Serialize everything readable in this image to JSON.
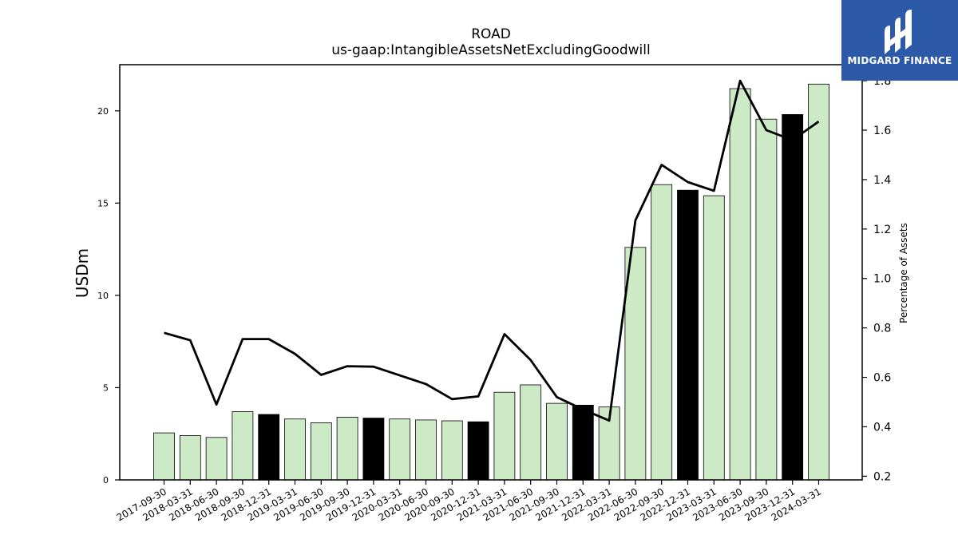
{
  "chart_data": {
    "type": "bar",
    "title": "ROAD",
    "subtitle": "us-gaap:IntangibleAssetsNetExcludingGoodwill",
    "ylabel": "USDm",
    "y2label": "Percentage of Assets",
    "ylim": [
      0,
      22.5
    ],
    "y2lim": [
      0.185,
      1.865
    ],
    "yticks": [
      0,
      5,
      10,
      15,
      20
    ],
    "y2ticks": [
      0.2,
      0.4,
      0.6,
      0.8,
      1.0,
      1.2,
      1.4,
      1.6,
      1.8
    ],
    "grid": false,
    "categories": [
      "2017-09-30",
      "2018-03-31",
      "2018-06-30",
      "2018-09-30",
      "2018-12-31",
      "2019-03-31",
      "2019-06-30",
      "2019-09-30",
      "2019-12-31",
      "2020-03-31",
      "2020-06-30",
      "2020-09-30",
      "2020-12-31",
      "2021-03-31",
      "2021-06-30",
      "2021-09-30",
      "2021-12-31",
      "2022-03-31",
      "2022-06-30",
      "2022-09-30",
      "2022-12-31",
      "2023-03-31",
      "2023-06-30",
      "2023-09-30",
      "2023-12-31",
      "2024-03-31"
    ],
    "series": [
      {
        "kind": "bar",
        "axis": "left",
        "values": [
          2.55,
          2.4,
          2.3,
          3.7,
          3.55,
          3.3,
          3.1,
          3.4,
          3.35,
          3.3,
          3.25,
          3.2,
          3.15,
          4.75,
          5.15,
          4.15,
          4.05,
          3.95,
          12.6,
          16.0,
          15.7,
          15.4,
          21.2,
          19.55,
          19.8,
          21.45
        ],
        "highlight": [
          false,
          false,
          false,
          false,
          true,
          false,
          false,
          false,
          true,
          false,
          false,
          false,
          true,
          false,
          false,
          false,
          true,
          false,
          false,
          false,
          true,
          false,
          false,
          false,
          true,
          false
        ]
      },
      {
        "kind": "line",
        "axis": "right",
        "values": [
          0.78,
          0.75,
          0.49,
          0.755,
          0.755,
          0.695,
          0.61,
          0.645,
          0.643,
          0.608,
          0.573,
          0.512,
          0.523,
          0.775,
          0.67,
          0.52,
          0.47,
          0.425,
          1.235,
          1.46,
          1.39,
          1.355,
          1.8,
          1.6,
          1.56,
          1.635
        ]
      }
    ],
    "colors": {
      "bar": "#cdeac6",
      "bar_highlight": "#000000",
      "line": "#000000"
    }
  },
  "brand": {
    "name": "MIDGARD FINANCE",
    "icon": "midgard-logo-icon",
    "color": "#2d5aa8"
  }
}
